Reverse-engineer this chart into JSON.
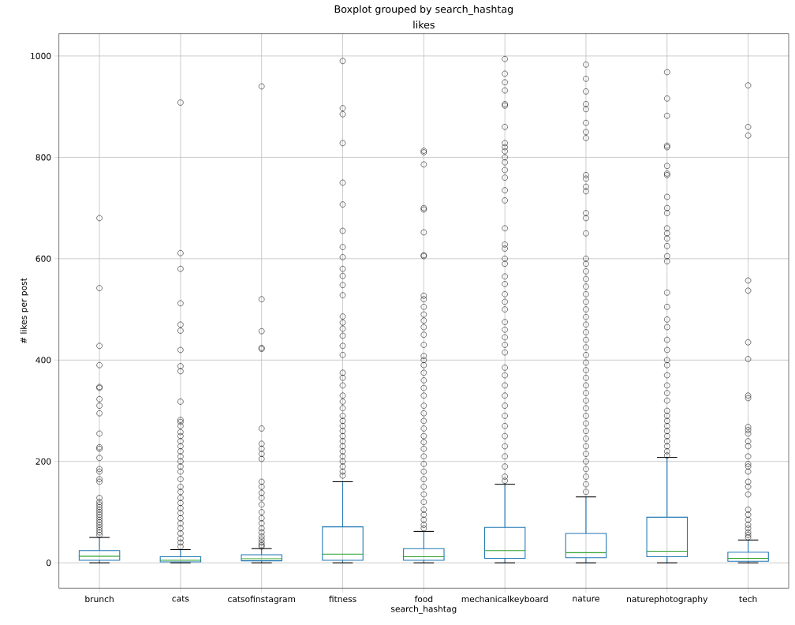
{
  "chart_data": {
    "type": "box",
    "title": "Boxplot grouped by search_hashtag",
    "subtitle": "likes",
    "xlabel": "search_hashtag",
    "ylabel": "# likes per post",
    "categories": [
      "brunch",
      "cats",
      "catsofinstagram",
      "fitness",
      "food",
      "mechanicalkeyboard",
      "nature",
      "naturephotography",
      "tech"
    ],
    "ylim": [
      -50,
      1044
    ],
    "yticks": [
      0,
      200,
      400,
      600,
      800,
      1000
    ],
    "grid": true,
    "marker": "circle",
    "boxes": [
      {
        "low": 0,
        "q1": 5,
        "median": 13,
        "q3": 24,
        "high": 50,
        "outliers": [
          680,
          542,
          428,
          390,
          347,
          345,
          323,
          310,
          295,
          255,
          228,
          225,
          207,
          185,
          180,
          165,
          160,
          128,
          120,
          115,
          110,
          105,
          100,
          95,
          90,
          85,
          80,
          75,
          70,
          65,
          60,
          55
        ]
      },
      {
        "low": 0,
        "q1": 2,
        "median": 5,
        "q3": 12,
        "high": 26,
        "outliers": [
          908,
          611,
          580,
          512,
          470,
          458,
          420,
          388,
          378,
          318,
          282,
          278,
          270,
          258,
          250,
          240,
          230,
          220,
          210,
          200,
          190,
          180,
          165,
          150,
          140,
          128,
          118,
          108,
          98,
          88,
          78,
          68,
          58,
          48,
          40,
          32
        ]
      },
      {
        "low": 0,
        "q1": 4,
        "median": 8,
        "q3": 16,
        "high": 28,
        "outliers": [
          940,
          520,
          457,
          424,
          422,
          265,
          235,
          225,
          215,
          205,
          160,
          150,
          138,
          128,
          115,
          100,
          88,
          78,
          68,
          60,
          52,
          46,
          40,
          35,
          32
        ]
      },
      {
        "low": 0,
        "q1": 5,
        "median": 17,
        "q3": 71,
        "high": 160,
        "outliers": [
          990,
          897,
          885,
          828,
          750,
          707,
          655,
          623,
          603,
          580,
          566,
          548,
          528,
          486,
          474,
          462,
          448,
          428,
          410,
          375,
          365,
          350,
          330,
          318,
          305,
          290,
          280,
          270,
          260,
          250,
          240,
          230,
          220,
          210,
          200,
          190,
          180,
          172
        ]
      },
      {
        "low": 0,
        "q1": 5,
        "median": 12,
        "q3": 28,
        "high": 62,
        "outliers": [
          813,
          810,
          786,
          700,
          697,
          652,
          607,
          605,
          527,
          520,
          505,
          490,
          478,
          465,
          450,
          430,
          408,
          400,
          390,
          375,
          360,
          345,
          330,
          310,
          295,
          280,
          265,
          250,
          238,
          225,
          210,
          195,
          180,
          165,
          150,
          135,
          120,
          105,
          95,
          85,
          75,
          68
        ]
      },
      {
        "low": 0,
        "q1": 9,
        "median": 24,
        "q3": 70,
        "high": 155,
        "outliers": [
          994,
          965,
          948,
          932,
          905,
          902,
          860,
          828,
          820,
          812,
          800,
          790,
          775,
          760,
          735,
          715,
          660,
          628,
          620,
          600,
          590,
          565,
          550,
          530,
          515,
          500,
          475,
          460,
          445,
          430,
          415,
          385,
          370,
          350,
          330,
          310,
          290,
          270,
          250,
          230,
          210,
          190,
          170,
          162
        ]
      },
      {
        "low": 0,
        "q1": 10,
        "median": 20,
        "q3": 58,
        "high": 130,
        "outliers": [
          983,
          955,
          930,
          905,
          895,
          868,
          850,
          838,
          765,
          758,
          742,
          733,
          690,
          680,
          650,
          600,
          590,
          575,
          560,
          545,
          530,
          515,
          500,
          485,
          470,
          455,
          440,
          425,
          410,
          395,
          380,
          365,
          350,
          335,
          320,
          305,
          290,
          275,
          260,
          245,
          230,
          215,
          200,
          185,
          170,
          155,
          140
        ]
      },
      {
        "low": 0,
        "q1": 12,
        "median": 23,
        "q3": 90,
        "high": 208,
        "outliers": [
          968,
          916,
          882,
          823,
          820,
          783,
          768,
          765,
          722,
          700,
          690,
          660,
          650,
          640,
          625,
          605,
          595,
          533,
          505,
          480,
          465,
          440,
          420,
          400,
          390,
          370,
          350,
          335,
          320,
          300,
          290,
          280,
          270,
          260,
          250,
          240,
          230,
          220,
          212
        ]
      },
      {
        "low": 0,
        "q1": 3,
        "median": 9,
        "q3": 21,
        "high": 45,
        "outliers": [
          942,
          860,
          843,
          557,
          537,
          435,
          402,
          330,
          325,
          268,
          262,
          255,
          240,
          230,
          210,
          195,
          190,
          180,
          160,
          150,
          135,
          105,
          95,
          85,
          75,
          68,
          60,
          55,
          50
        ]
      }
    ]
  }
}
